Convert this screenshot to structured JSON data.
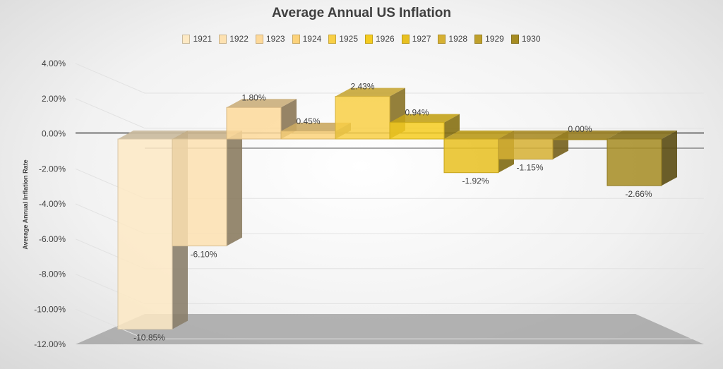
{
  "chart_data": {
    "type": "bar",
    "title": "Average Annual US Inflation",
    "ylabel": "Average Annual Inflation Rate",
    "xlabel": "",
    "ylim": [
      -12,
      4
    ],
    "ytick_labels": [
      "4.00%",
      "2.00%",
      "0.00%",
      "-2.00%",
      "-4.00%",
      "-6.00%",
      "-8.00%",
      "-10.00%",
      "-12.00%"
    ],
    "legend_position": "top",
    "grid": true,
    "categories": [
      "1921",
      "1922",
      "1923",
      "1924",
      "1925",
      "1926",
      "1927",
      "1928",
      "1929",
      "1930"
    ],
    "values": [
      -10.85,
      -6.1,
      1.8,
      0.45,
      2.43,
      0.94,
      -1.92,
      -1.15,
      0.0,
      -2.66
    ],
    "data_labels": [
      "-10.85%",
      "-6.10%",
      "1.80%",
      "0.45%",
      "2.43%",
      "0.94%",
      "-1.92%",
      "-1.15%",
      "0.00%",
      "-2.66%"
    ],
    "colors": [
      "#fde9c4",
      "#fde1b0",
      "#fdd99a",
      "#fcd27a",
      "#f8cf45",
      "#f4cb20",
      "#e8c020",
      "#d6b032",
      "#bfa02b",
      "#a68c22"
    ]
  }
}
